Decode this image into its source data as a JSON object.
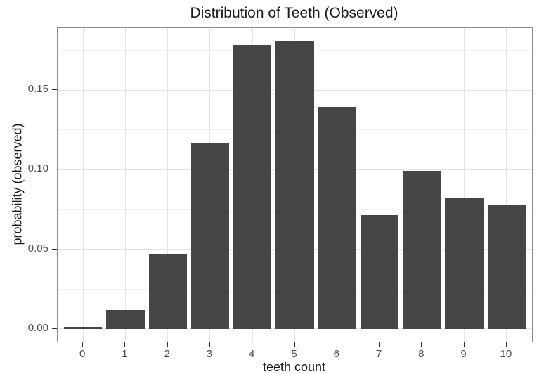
{
  "chart_data": {
    "type": "bar",
    "title": "Distribution of Teeth (Observed)",
    "xlabel": "teeth count",
    "ylabel": "probability (observed)",
    "categories": [
      0,
      1,
      2,
      3,
      4,
      5,
      6,
      7,
      8,
      9,
      10
    ],
    "values": [
      0.0013,
      0.0119,
      0.0469,
      0.1164,
      0.1786,
      0.1808,
      0.1395,
      0.0715,
      0.0994,
      0.0822,
      0.0777
    ],
    "yticks": [
      0.0,
      0.05,
      0.1,
      0.15
    ],
    "ytick_labels": [
      "0.00",
      "0.05",
      "0.10",
      "0.15"
    ],
    "yticks_minor": [
      0.025,
      0.075,
      0.125,
      0.175
    ],
    "ylim": [
      -0.008,
      0.189
    ],
    "xlim": [
      -0.6,
      10.6
    ],
    "bar_width": 0.9,
    "grid": true,
    "legend_position": "none",
    "colors": {
      "bar_fill": "#464646",
      "grid_major": "#e3e3e3",
      "grid_minor": "#f1f1f1",
      "panel_bg": "#ffffff",
      "panel_border": "#8c8c8c",
      "tick_mark": "#333333",
      "tick_label": "#4d4d4d",
      "title_text": "#1a1a1a"
    }
  }
}
